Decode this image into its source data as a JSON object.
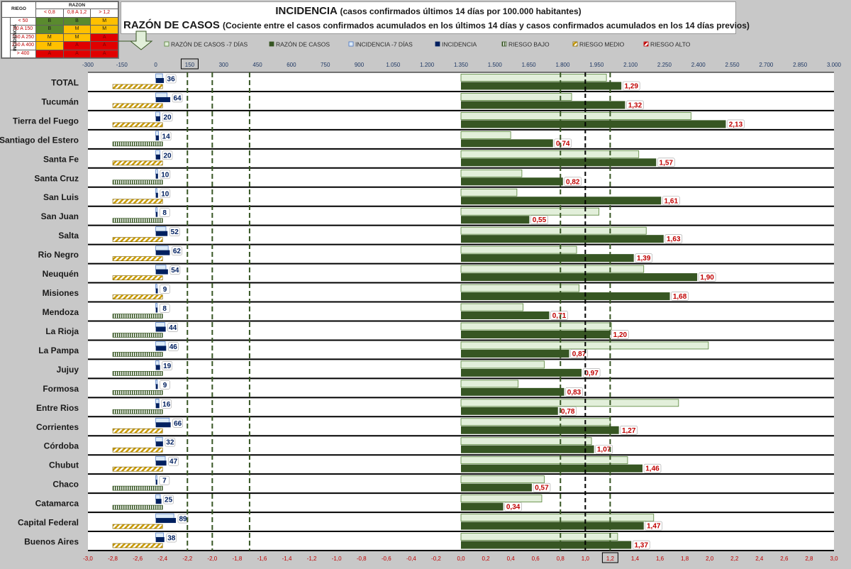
{
  "header": {
    "title": "INCIDENCIA",
    "title_sub": "(casos confirmados últimos 14 días por 100.000 habitantes)",
    "subtitle": "RAZÓN DE CASOS",
    "subtitle_sub": "(Cociente entre el casos confirmados acumulados en los últimos 14 días y casos confirmados acumulados en los 14 días previos)"
  },
  "risk_table": {
    "riesgo_label": "RIEGO",
    "razon_label": "RAZON",
    "incidencia_label": "INCIDENCIA",
    "razon_ranges": [
      "< 0,8",
      "0,8 A 1,2",
      "> 1,2"
    ],
    "rows": [
      {
        "range": "< 50",
        "cells": [
          "B",
          "B",
          "M"
        ]
      },
      {
        "range": "50 A 150",
        "cells": [
          "B",
          "M",
          "M"
        ]
      },
      {
        "range": "150 A 250",
        "cells": [
          "M",
          "M",
          "A"
        ]
      },
      {
        "range": "250 A 400",
        "cells": [
          "M",
          "A",
          "A"
        ]
      },
      {
        "range": "> 400",
        "cells": [
          "A",
          "A",
          "A"
        ]
      }
    ],
    "colors": {
      "B": "#5a8a2e",
      "M": "#ffc000",
      "A": "#e00000"
    }
  },
  "chart_data": {
    "type": "bar",
    "orientation": "horizontal",
    "categories": [
      "TOTAL",
      "Tucumán",
      "Tierra del Fuego",
      "Santiago del Estero",
      "Santa Fe",
      "Santa Cruz",
      "San Luis",
      "San Juan",
      "Salta",
      "Rio Negro",
      "Neuquén",
      "Misiones",
      "Mendoza",
      "La Rioja",
      "La Pampa",
      "Jujuy",
      "Formosa",
      "Entre Rios",
      "Corrientes",
      "Córdoba",
      "Chubut",
      "Chaco",
      "Catamarca",
      "Capital Federal",
      "Buenos Aires"
    ],
    "legend": [
      "RAZÓN DE CASOS -7 DÍAS",
      "RAZÓN DE CASOS",
      "INCIDENCIA -7 DÍAS",
      "INCIDENCIA",
      "RIESGO BAJO",
      "RIESGO MEDIO",
      "RIESGO ALTO"
    ],
    "legend_position": "top",
    "series": [
      {
        "name": "RAZÓN DE CASOS -7 DÍAS",
        "values": [
          1.17,
          0.89,
          1.85,
          0.4,
          1.43,
          0.49,
          0.45,
          1.11,
          1.49,
          0.93,
          1.47,
          0.95,
          0.5,
          1.21,
          1.99,
          0.67,
          0.46,
          1.75,
          1.2,
          1.05,
          1.34,
          0.67,
          0.65,
          1.55,
          1.26
        ],
        "color": "#e2efda"
      },
      {
        "name": "RAZÓN DE CASOS",
        "values": [
          1.29,
          1.32,
          2.13,
          0.74,
          1.57,
          0.82,
          1.61,
          0.55,
          1.63,
          1.39,
          1.9,
          1.68,
          0.71,
          1.2,
          0.87,
          0.97,
          0.83,
          0.78,
          1.27,
          1.07,
          1.46,
          0.57,
          0.34,
          1.47,
          1.37
        ],
        "color": "#375623"
      },
      {
        "name": "INCIDENCIA -7 DÍAS",
        "values": [
          30,
          50,
          18,
          12,
          18,
          8,
          5,
          6,
          45,
          55,
          45,
          5,
          6,
          40,
          42,
          14,
          6,
          14,
          60,
          30,
          42,
          5,
          20,
          80,
          34
        ],
        "color": "#ddebf7"
      },
      {
        "name": "INCIDENCIA",
        "values": [
          36,
          64,
          20,
          14,
          20,
          10,
          10,
          8,
          52,
          62,
          54,
          9,
          8,
          44,
          46,
          19,
          9,
          16,
          66,
          32,
          47,
          7,
          25,
          89,
          38
        ],
        "color": "#002060"
      },
      {
        "name": "RIESGO",
        "values": [
          "M",
          "M",
          "M",
          "B",
          "M",
          "B",
          "M",
          "B",
          "M",
          "M",
          "M",
          "M",
          "B",
          "B",
          "B",
          "B",
          "B",
          "B",
          "M",
          "M",
          "M",
          "B",
          "B",
          "M",
          "M"
        ]
      }
    ],
    "razon_labels": [
      "1,29",
      "1,32",
      "2,13",
      "0,74",
      "1,57",
      "0,82",
      "1,61",
      "0,55",
      "1,63",
      "1,39",
      "1,90",
      "1,68",
      "0,71",
      "1,20",
      "0,87",
      "0,97",
      "0,83",
      "0,78",
      "1,27",
      "1,07",
      "1,46",
      "0,57",
      "0,34",
      "1,47",
      "1,37"
    ],
    "incidencia_labels": [
      "36",
      "64",
      "20",
      "14",
      "20",
      "10",
      "10",
      "8",
      "52",
      "62",
      "54",
      "9",
      "8",
      "44",
      "46",
      "19",
      "9",
      "16",
      "66",
      "32",
      "47",
      "7",
      "25",
      "89",
      "38"
    ],
    "top_axis": {
      "min": -300,
      "max": 3000,
      "ticks": [
        "-300",
        "-150",
        "0",
        "150",
        "300",
        "450",
        "600",
        "750",
        "900",
        "1.050",
        "1.200",
        "1.350",
        "1.500",
        "1.650",
        "1.800",
        "1.950",
        "2.100",
        "2.250",
        "2.400",
        "2.550",
        "2.700",
        "2.850",
        "3.000"
      ],
      "boxed_tick": "150"
    },
    "bottom_axis": {
      "min": -3.0,
      "max": 3.0,
      "ticks": [
        "-3,0",
        "-2,8",
        "-2,6",
        "-2,4",
        "-2,2",
        "-2,0",
        "-1,8",
        "-1,6",
        "-1,4",
        "-1,2",
        "-1,0",
        "-0,8",
        "-0,6",
        "-0,4",
        "-0,2",
        "0,0",
        "0,2",
        "0,4",
        "0,6",
        "0,8",
        "1,0",
        "1,2",
        "1,4",
        "1,6",
        "1,8",
        "2,0",
        "2,2",
        "2,4",
        "2,6",
        "2,8",
        "3,0"
      ],
      "boxed_tick": "1,2"
    },
    "reference_lines_incidencia": [
      -2.2,
      -2.0,
      -1.7
    ],
    "reference_lines_razon": [
      0.8,
      1.2
    ],
    "reference_line_black": 1.0,
    "grid": false
  }
}
